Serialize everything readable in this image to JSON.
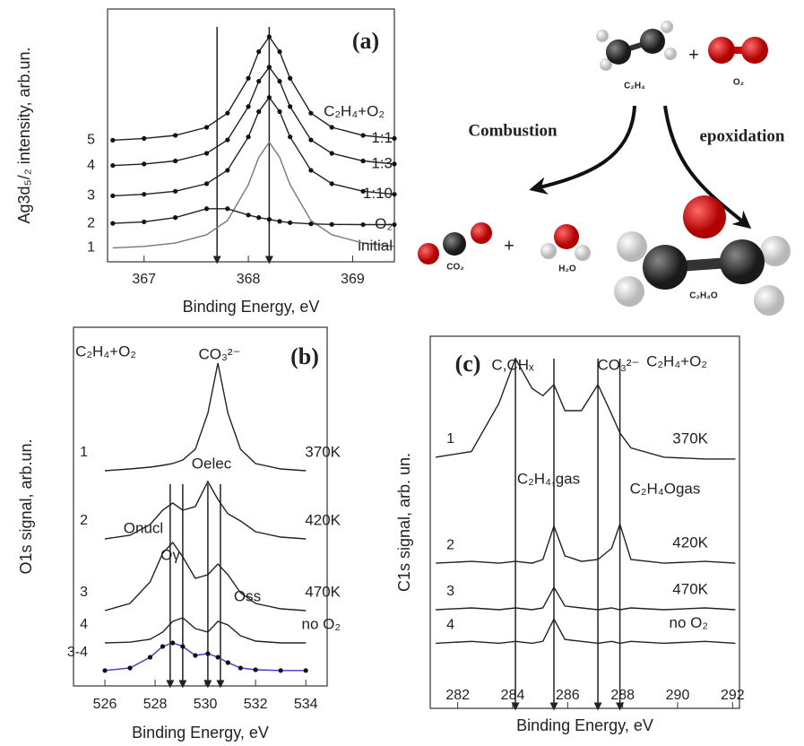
{
  "chart_data": [
    {
      "type": "line",
      "title": "(a)",
      "subtitle": "C₂H₄+O₂",
      "x_label": "Binding Energy, eV",
      "y_label": "Ag3d₅/₂ intensity, arb.un.",
      "xlim": [
        366.65,
        369.4
      ],
      "xticks": [
        367,
        368,
        369
      ],
      "ylim": [
        0,
        10
      ],
      "x": [
        366.7,
        367.0,
        367.3,
        367.6,
        367.8,
        368.0,
        368.1,
        368.2,
        368.3,
        368.4,
        368.6,
        368.8,
        369.1,
        369.4
      ],
      "peak_lines": [
        367.7,
        368.2
      ],
      "annotations": [],
      "series": [
        {
          "name": "1",
          "end_label": "initial",
          "color": "#777777",
          "markers": false,
          "values": [
            0.55,
            0.61,
            0.74,
            1.07,
            1.63,
            3.05,
            4.13,
            4.73,
            4.13,
            3.05,
            1.63,
            1.07,
            0.74,
            0.61
          ]
        },
        {
          "name": "2",
          "end_label": "O₂",
          "color": "#222222",
          "markers": true,
          "values": [
            1.52,
            1.58,
            1.75,
            2.1,
            2.1,
            1.85,
            1.75,
            1.68,
            1.6,
            1.55,
            1.5,
            1.48,
            1.47,
            1.47
          ]
        },
        {
          "name": "3",
          "end_label": "1:10",
          "color": "#222222",
          "markers": true,
          "values": [
            2.61,
            2.67,
            2.79,
            3.09,
            3.62,
            4.94,
            5.94,
            6.5,
            5.94,
            4.94,
            3.62,
            3.09,
            2.79,
            2.67
          ]
        },
        {
          "name": "4",
          "end_label": "1:3",
          "color": "#222222",
          "markers": true,
          "values": [
            3.81,
            3.87,
            3.99,
            4.29,
            4.82,
            6.14,
            7.14,
            7.7,
            7.14,
            6.14,
            4.82,
            4.29,
            3.99,
            3.87
          ]
        },
        {
          "name": "5",
          "end_label": "1:1",
          "color": "#222222",
          "markers": true,
          "values": [
            4.81,
            4.88,
            5.0,
            5.32,
            5.88,
            7.26,
            8.31,
            8.9,
            8.31,
            7.26,
            5.88,
            5.32,
            5.0,
            4.88
          ]
        }
      ]
    },
    {
      "type": "line",
      "title": "(b)",
      "subtitle": "C₂H₄+O₂",
      "x_label": "Binding Energy, eV",
      "y_label": "O1s signal, arb.un.",
      "xlim": [
        524.75,
        534.85
      ],
      "xticks": [
        526,
        528,
        530,
        532,
        534
      ],
      "ylim": [
        0,
        10
      ],
      "x": [
        526,
        527,
        527.8,
        528.3,
        528.7,
        529.1,
        529.6,
        530.1,
        530.5,
        530.9,
        531.4,
        532,
        533,
        534
      ],
      "peak_lines": [
        528.6,
        529.1,
        530.1,
        530.6
      ],
      "annotations": [
        "CO₃²⁻",
        "Onucl",
        "Oelec",
        "Oγ",
        "Oss"
      ],
      "series": [
        {
          "name": "1",
          "end_label": "370K",
          "color": "#222222",
          "markers": false,
          "values": [
            6.0,
            6.05,
            6.1,
            6.15,
            6.2,
            6.3,
            6.6,
            7.6,
            9.0,
            7.6,
            6.6,
            6.2,
            6.05,
            6.0
          ]
        },
        {
          "name": "2",
          "end_label": "420K",
          "color": "#222222",
          "markers": false,
          "values": [
            4.1,
            4.2,
            4.5,
            4.9,
            5.1,
            4.9,
            5.0,
            5.7,
            5.2,
            4.8,
            4.6,
            4.3,
            4.15,
            4.1
          ]
        },
        {
          "name": "3",
          "end_label": "470K",
          "color": "#222222",
          "markers": false,
          "values": [
            2.1,
            2.3,
            2.9,
            3.7,
            4.0,
            3.6,
            3.0,
            3.1,
            3.4,
            3.1,
            2.6,
            2.3,
            2.15,
            2.1
          ]
        },
        {
          "name": "4",
          "end_label": "no O₂",
          "color": "#222222",
          "markers": false,
          "values": [
            1.2,
            1.22,
            1.3,
            1.5,
            1.8,
            1.9,
            1.6,
            1.5,
            1.8,
            1.7,
            1.4,
            1.25,
            1.2,
            1.2
          ]
        },
        {
          "name": "3-4",
          "color": "#3a3ad0",
          "markers": true,
          "values": [
            0.43,
            0.5,
            0.8,
            1.1,
            1.2,
            1.1,
            0.85,
            0.9,
            0.8,
            0.65,
            0.5,
            0.45,
            0.43,
            0.43
          ]
        }
      ]
    },
    {
      "type": "line",
      "title": "(c)",
      "subtitle": "C₂H₄+O₂",
      "x_label": "Binding Energy, eV",
      "y_label": "C1s signal, arb. un.",
      "xlim": [
        281,
        292.25
      ],
      "xticks": [
        282,
        284,
        286,
        288,
        290,
        292
      ],
      "ylim": [
        0,
        10
      ],
      "x": [
        281.2,
        282.5,
        283.5,
        284.1,
        284.7,
        285.1,
        285.5,
        285.9,
        286.5,
        287.1,
        287.6,
        287.9,
        288.3,
        289.5,
        291,
        292.1
      ],
      "peak_lines": [
        284.1,
        285.5,
        287.1,
        287.9
      ],
      "annotations": [
        "C,CHₓ",
        "CO₃²⁻",
        "C₂H₄,gas",
        "C₂H₄Ogas"
      ],
      "series": [
        {
          "name": "1",
          "end_label": "370K",
          "color": "#222222",
          "markers": false,
          "values": [
            6.75,
            6.9,
            8.2,
            9.4,
            8.6,
            8.4,
            8.7,
            8.0,
            8.0,
            8.7,
            7.9,
            7.4,
            7.0,
            6.75,
            6.7,
            6.7
          ]
        },
        {
          "name": "2",
          "end_label": "420K",
          "color": "#222222",
          "markers": false,
          "values": [
            3.9,
            3.95,
            3.9,
            3.95,
            3.9,
            4.0,
            4.9,
            4.1,
            3.95,
            4.0,
            4.3,
            4.95,
            4.0,
            3.9,
            3.95,
            3.9
          ]
        },
        {
          "name": "3",
          "end_label": "470K",
          "color": "#222222",
          "markers": false,
          "values": [
            2.65,
            2.7,
            2.65,
            2.7,
            2.65,
            2.7,
            3.25,
            2.75,
            2.7,
            2.65,
            2.7,
            2.65,
            2.7,
            2.65,
            2.7,
            2.65
          ]
        },
        {
          "name": "4",
          "end_label": "no O₂",
          "color": "#222222",
          "markers": false,
          "values": [
            1.75,
            1.8,
            1.75,
            1.8,
            1.75,
            1.8,
            2.4,
            1.85,
            1.8,
            1.75,
            1.8,
            1.75,
            1.8,
            1.75,
            1.8,
            1.75
          ]
        }
      ]
    }
  ],
  "scheme": {
    "reactant_1": "C₂H₄",
    "plus": "+",
    "reactant_2": "O₂",
    "path_1": "Combustion",
    "path_2": "epoxidation",
    "product_1": "CO₂",
    "product_2": "H₂O",
    "product_3": "C₂H₄O"
  }
}
